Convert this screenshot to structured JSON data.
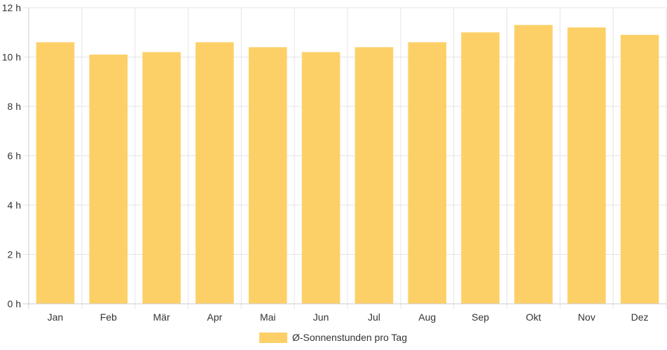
{
  "chart_data": {
    "type": "bar",
    "categories": [
      "Jan",
      "Feb",
      "Mär",
      "Apr",
      "Mai",
      "Jun",
      "Jul",
      "Aug",
      "Sep",
      "Okt",
      "Nov",
      "Dez"
    ],
    "series": [
      {
        "name": "Ø-Sonnenstunden pro Tag",
        "values": [
          10.6,
          10.1,
          10.2,
          10.6,
          10.4,
          10.2,
          10.4,
          10.6,
          11.0,
          11.3,
          11.2,
          10.9
        ],
        "color": "#fdd067"
      }
    ],
    "y_ticks": [
      "0 h",
      "2 h",
      "4 h",
      "6 h",
      "8 h",
      "10 h",
      "12 h"
    ],
    "ylim": [
      0,
      12
    ],
    "grid": true,
    "legend_position": "bottom",
    "colors": {
      "bar": "#fdd067",
      "grid": "#e5e5e5",
      "axis": "#cccccc",
      "text": "#333333"
    }
  }
}
